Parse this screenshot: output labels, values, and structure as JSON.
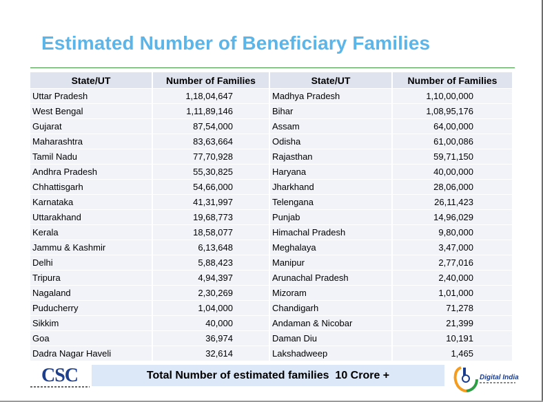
{
  "title": "Estimated Number of Beneficiary Families",
  "columns": [
    "State/UT",
    "Number of Families",
    "State/UT",
    "Number of Families"
  ],
  "rows": [
    {
      "state1": "Uttar Pradesh",
      "families1": "1,18,04,647",
      "state2": "Madhya Pradesh",
      "families2": "1,10,00,000"
    },
    {
      "state1": "West Bengal",
      "families1": "1,11,89,146",
      "state2": "Bihar",
      "families2": "1,08,95,176"
    },
    {
      "state1": "Gujarat",
      "families1": "87,54,000",
      "state2": "Assam",
      "families2": "64,00,000"
    },
    {
      "state1": "Maharashtra",
      "families1": "83,63,664",
      "state2": "Odisha",
      "families2": "61,00,086"
    },
    {
      "state1": "Tamil Nadu",
      "families1": "77,70,928",
      "state2": "Rajasthan",
      "families2": "59,71,150"
    },
    {
      "state1": "Andhra Pradesh",
      "families1": "55,30,825",
      "state2": "Haryana",
      "families2": "40,00,000"
    },
    {
      "state1": "Chhattisgarh",
      "families1": "54,66,000",
      "state2": "Jharkhand",
      "families2": "28,06,000"
    },
    {
      "state1": "Karnataka",
      "families1": "41,31,997",
      "state2": "Telengana",
      "families2": "26,11,423"
    },
    {
      "state1": "Uttarakhand",
      "families1": "19,68,773",
      "state2": "Punjab",
      "families2": "14,96,029"
    },
    {
      "state1": "Kerala",
      "families1": "18,58,077",
      "state2": "Himachal Pradesh",
      "families2": "9,80,000"
    },
    {
      "state1": "Jammu & Kashmir",
      "families1": "6,13,648",
      "state2": "Meghalaya",
      "families2": "3,47,000"
    },
    {
      "state1": "Delhi",
      "families1": "5,88,423",
      "state2": "Manipur",
      "families2": "2,77,016"
    },
    {
      "state1": "Tripura",
      "families1": "4,94,397",
      "state2": "Arunachal Pradesh",
      "families2": "2,40,000"
    },
    {
      "state1": "Nagaland",
      "families1": "2,30,269",
      "state2": "Mizoram",
      "families2": "1,01,000"
    },
    {
      "state1": "Puducherry",
      "families1": "1,04,000",
      "state2": "Chandigarh",
      "families2": "71,278"
    },
    {
      "state1": "Sikkim",
      "families1": "40,000",
      "state2": "Andaman & Nicobar",
      "families2": "21,399"
    },
    {
      "state1": "Goa",
      "families1": "36,974",
      "state2": "Daman Diu",
      "families2": "10,191"
    },
    {
      "state1": "Dadra Nagar Haveli",
      "families1": "32,614",
      "state2": "Lakshadweep",
      "families2": "1,465"
    }
  ],
  "total": "Total Number of estimated families  10 Crore +",
  "logos": {
    "csc": "CSC",
    "digital_india": "Digital India"
  },
  "colors": {
    "title": "#5bb5e8",
    "rule": "#3f9a3f",
    "header_fill": "#dfe3ee",
    "row_fill": "#f1f3f8",
    "total_fill": "#dce7f7",
    "csc_blue": "#1e3f8c",
    "di_saffron": "#f39c1f",
    "di_green": "#2e9e45"
  }
}
